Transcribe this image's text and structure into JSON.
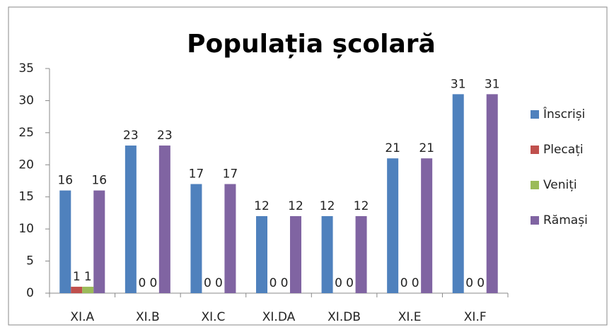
{
  "chart_data": {
    "type": "bar",
    "title": "Populația școlară",
    "categories": [
      "XI.A",
      "XI.B",
      "XI.C",
      "XI.DA",
      "XI.DB",
      "XI.E",
      "XI.F"
    ],
    "series": [
      {
        "name": "Înscriși",
        "color": "#4f81bd",
        "values": [
          16,
          23,
          17,
          12,
          12,
          21,
          31
        ]
      },
      {
        "name": "Plecați",
        "color": "#c0504d",
        "values": [
          1,
          0,
          0,
          0,
          0,
          0,
          0
        ]
      },
      {
        "name": "Veniți",
        "color": "#9bbb59",
        "values": [
          1,
          0,
          0,
          0,
          0,
          0,
          0
        ]
      },
      {
        "name": "Rămași",
        "color": "#8064a2",
        "values": [
          16,
          23,
          17,
          12,
          12,
          21,
          31
        ]
      }
    ],
    "ylim": [
      0,
      35
    ],
    "yticks": [
      0,
      5,
      10,
      15,
      20,
      25,
      30,
      35
    ],
    "grid": false,
    "legend": "right"
  }
}
